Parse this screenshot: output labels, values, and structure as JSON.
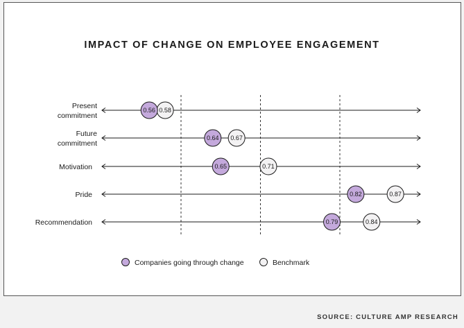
{
  "title": "IMPACT OF CHANGE ON EMPLOYEE ENGAGEMENT",
  "source": "SOURCE: CULTURE AMP RESEARCH",
  "colors": {
    "change": "#c4a9dc",
    "benchmark": "#f3f2f3",
    "stroke": "#1a1a1a"
  },
  "chart_data": {
    "type": "scatter",
    "title": "IMPACT OF CHANGE ON EMPLOYEE ENGAGEMENT",
    "categories": [
      [
        "Present",
        "commitment"
      ],
      [
        "Future",
        "commitment"
      ],
      [
        "Motivation"
      ],
      [
        "Pride"
      ],
      [
        "Recommendation"
      ]
    ],
    "series": [
      {
        "name": "Companies going through change",
        "values": [
          0.56,
          0.64,
          0.65,
          0.82,
          0.79
        ]
      },
      {
        "name": "Benchmark",
        "values": [
          0.58,
          0.67,
          0.71,
          0.87,
          0.84
        ]
      }
    ],
    "xlim": [
      0.45,
      0.9
    ],
    "reference_lines": [
      0.6,
      0.7,
      0.8
    ],
    "legend_position": "bottom",
    "grid": false
  }
}
